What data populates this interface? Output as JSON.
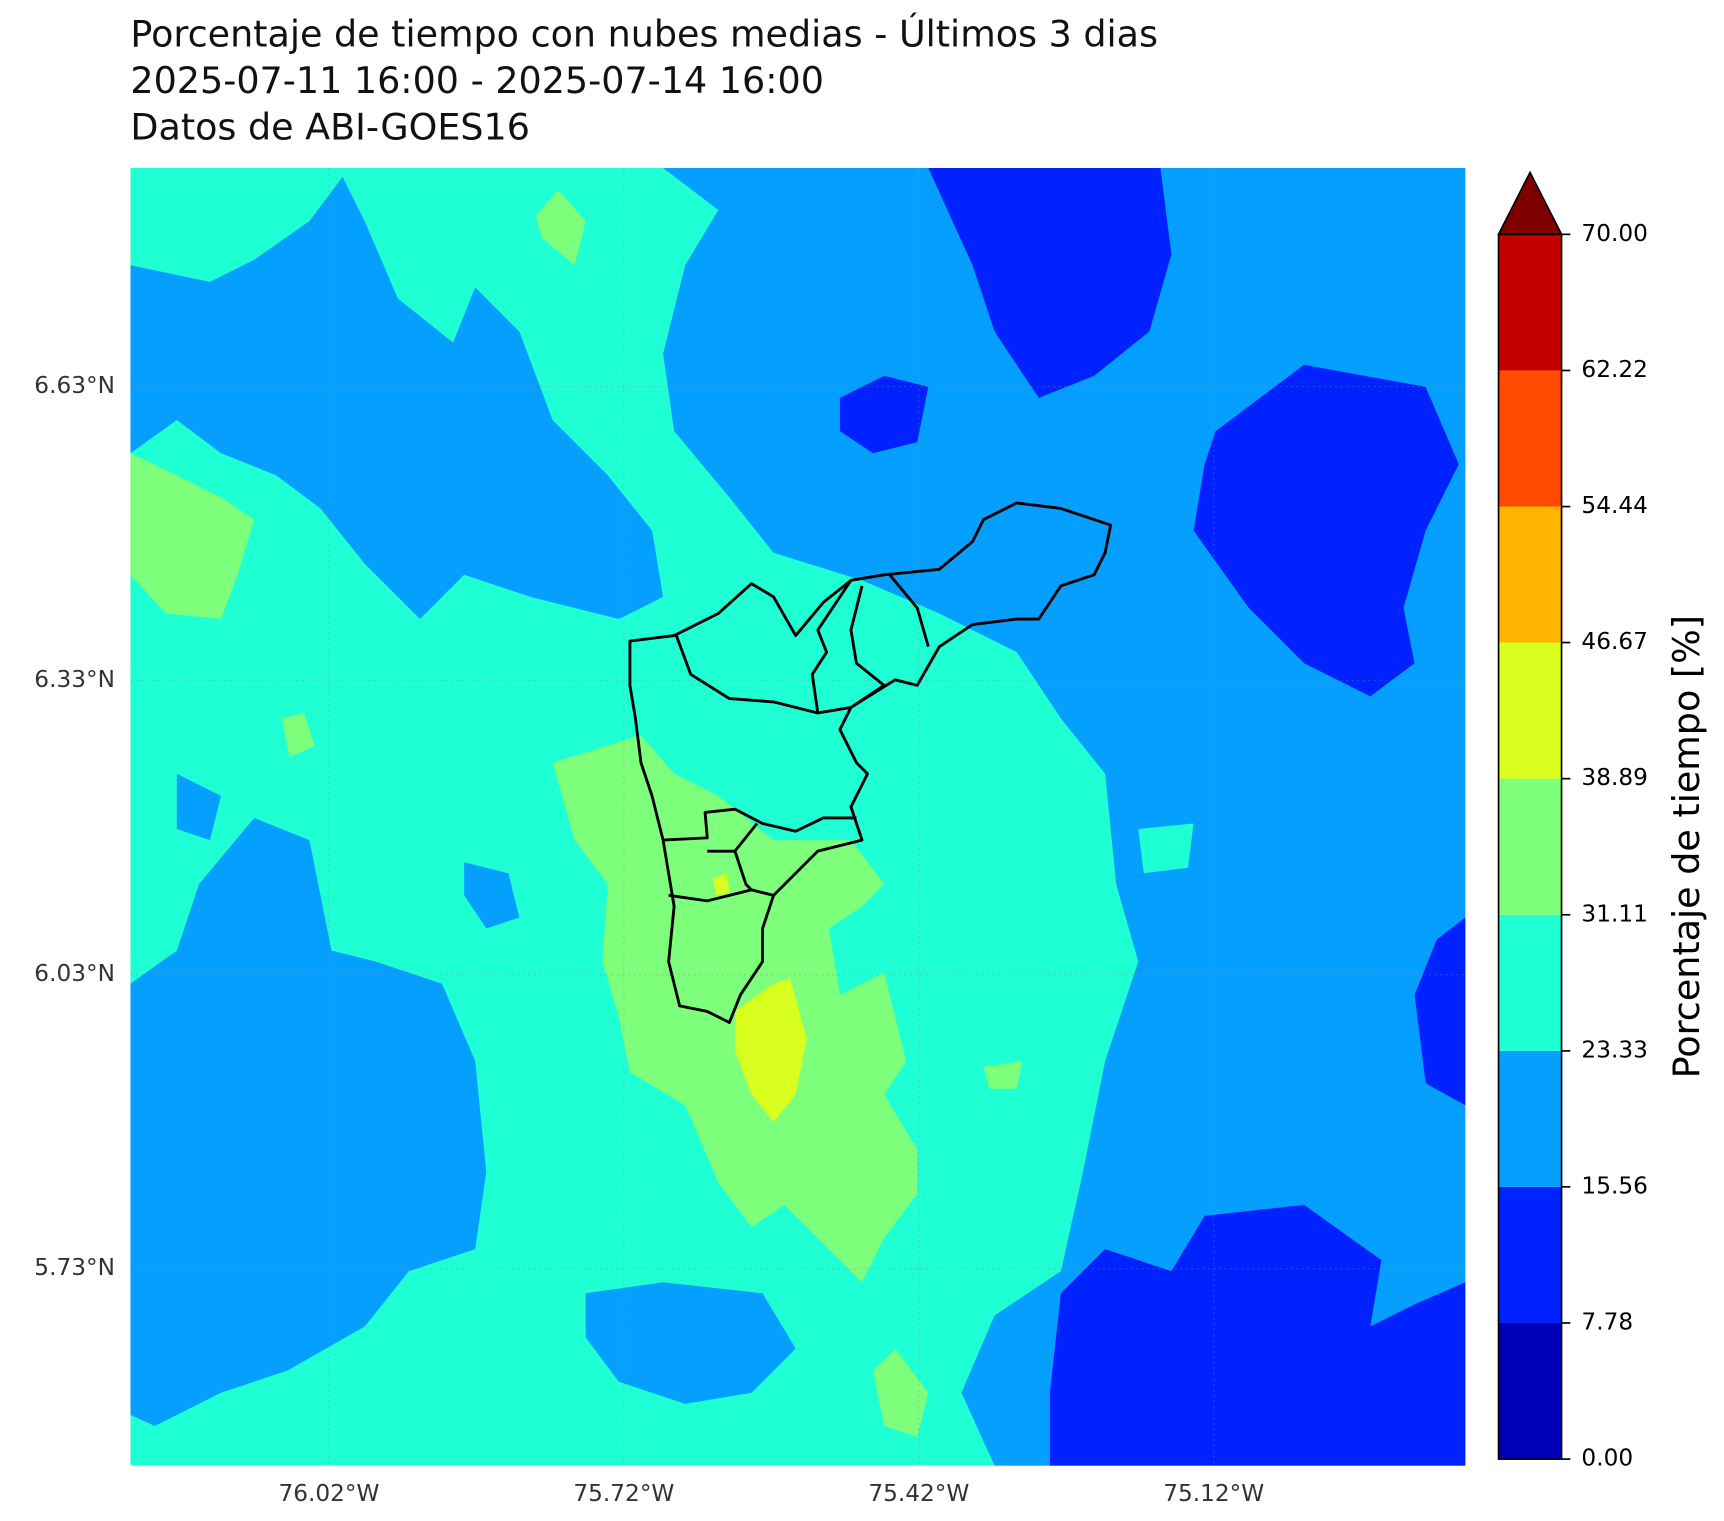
{
  "title": [
    "Porcentaje de tiempo con nubes medias - Últimos 3 dias",
    "2025-07-11 16:00 - 2025-07-14 16:00",
    "Datos de ABI-GOES16"
  ],
  "map": {
    "xlim": [
      -76.222,
      -74.864
    ],
    "ylim": [
      5.529,
      6.853
    ],
    "lon_ticks": [
      {
        "value": -76.02,
        "label": "76.02°W"
      },
      {
        "value": -75.72,
        "label": "75.72°W"
      },
      {
        "value": -75.42,
        "label": "75.42°W"
      },
      {
        "value": -75.12,
        "label": "75.12°W"
      }
    ],
    "lat_ticks": [
      {
        "value": 6.63,
        "label": "6.63°N"
      },
      {
        "value": 6.33,
        "label": "6.33°N"
      },
      {
        "value": 6.03,
        "label": "6.03°N"
      },
      {
        "value": 5.73,
        "label": "5.73°N"
      }
    ]
  },
  "colorbar": {
    "label": "Porcentaje de tiempo [%]",
    "levels": [
      {
        "value": 0,
        "label": "0.00"
      },
      {
        "value": 7.78,
        "label": "7.78"
      },
      {
        "value": 15.56,
        "label": "15.56"
      },
      {
        "value": 23.33,
        "label": "23.33"
      },
      {
        "value": 31.11,
        "label": "31.11"
      },
      {
        "value": 38.89,
        "label": "38.89"
      },
      {
        "value": 46.67,
        "label": "46.67"
      },
      {
        "value": 54.44,
        "label": "54.44"
      },
      {
        "value": 62.22,
        "label": "62.22"
      },
      {
        "value": 70,
        "label": "70.00"
      }
    ],
    "colors": [
      "#0000b8",
      "#0022ff",
      "#05a0ff",
      "#1effd4",
      "#7dff7b",
      "#d8ff1e",
      "#ffb400",
      "#ff4a00",
      "#c40000"
    ],
    "extend_color": "#800000"
  }
}
